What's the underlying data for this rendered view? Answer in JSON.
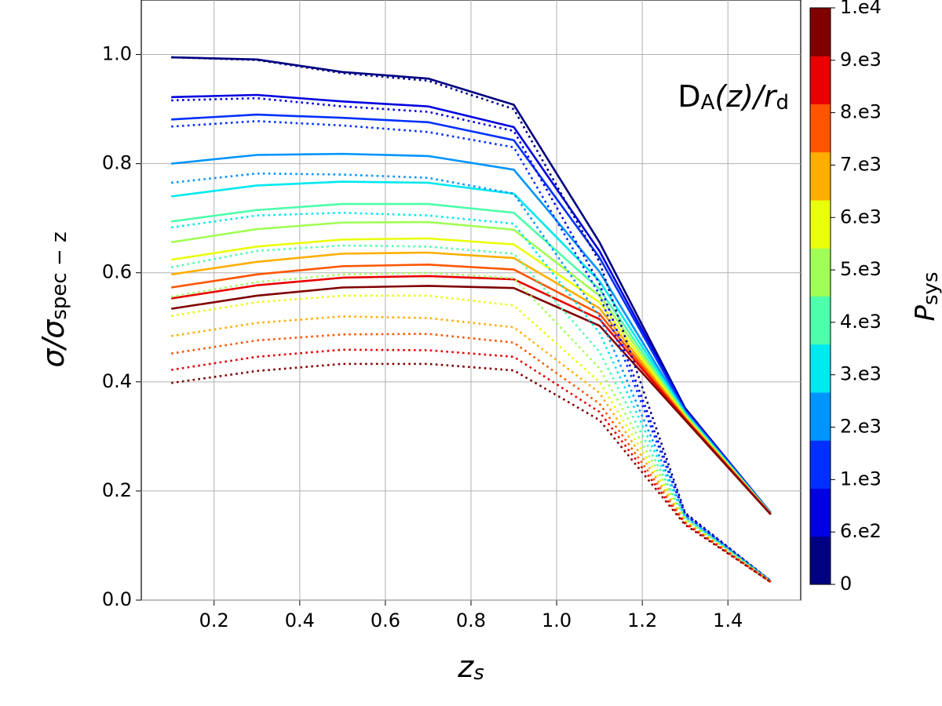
{
  "chart_data": {
    "type": "line",
    "annotation": [
      "D",
      "A",
      "(z)/r",
      "d"
    ],
    "xlabel": [
      "z",
      "s"
    ],
    "ylabel": [
      "σ/σ",
      "spec − z"
    ],
    "x": [
      0.1,
      0.3,
      0.5,
      0.7,
      0.9,
      1.1,
      1.3,
      1.5
    ],
    "xlim": [
      0.03,
      1.57
    ],
    "ylim": [
      0,
      1.1
    ],
    "xticks": [
      0.2,
      0.4,
      0.6,
      0.8,
      {
        "value": 1.0,
        "label": "1.0"
      },
      1.2,
      1.4
    ],
    "yticks": [
      {
        "value": 0,
        "label": "0.0"
      },
      0.2,
      0.4,
      0.6,
      0.8,
      {
        "value": 1.0,
        "label": "1.0"
      }
    ],
    "grid": true,
    "colorbar": {
      "label": [
        "P",
        "sys"
      ],
      "ticks": [
        "0",
        "6.e2",
        "1.e3",
        "2.e3",
        "3.e3",
        "4.e3",
        "5.e3",
        "6.e3",
        "7.e3",
        "8.e3",
        "9.e3",
        "1.e4"
      ]
    },
    "series": [
      {
        "color": "#000080",
        "linestyle": "solid",
        "values": [
          0.995,
          0.991,
          0.968,
          0.956,
          0.908,
          0.656,
          0.352,
          0.16
        ]
      },
      {
        "color": "#0000e0",
        "linestyle": "solid",
        "values": [
          0.922,
          0.926,
          0.914,
          0.905,
          0.867,
          0.64,
          0.35,
          0.16
        ]
      },
      {
        "color": "#0030ff",
        "linestyle": "solid",
        "values": [
          0.881,
          0.89,
          0.884,
          0.876,
          0.843,
          0.628,
          0.348,
          0.16
        ]
      },
      {
        "color": "#0094ff",
        "linestyle": "solid",
        "values": [
          0.8,
          0.816,
          0.818,
          0.814,
          0.789,
          0.602,
          0.345,
          0.159
        ]
      },
      {
        "color": "#00e8f0",
        "linestyle": "solid",
        "values": [
          0.74,
          0.76,
          0.767,
          0.765,
          0.745,
          0.585,
          0.343,
          0.159
        ]
      },
      {
        "color": "#4dffaa",
        "linestyle": "solid",
        "values": [
          0.694,
          0.715,
          0.726,
          0.726,
          0.71,
          0.57,
          0.341,
          0.159
        ]
      },
      {
        "color": "#a0ff56",
        "linestyle": "solid",
        "values": [
          0.656,
          0.68,
          0.692,
          0.693,
          0.679,
          0.558,
          0.339,
          0.158
        ]
      },
      {
        "color": "#eaff0d",
        "linestyle": "solid",
        "values": [
          0.624,
          0.648,
          0.661,
          0.663,
          0.652,
          0.546,
          0.337,
          0.158
        ]
      },
      {
        "color": "#ffae00",
        "linestyle": "solid",
        "values": [
          0.597,
          0.62,
          0.635,
          0.637,
          0.627,
          0.535,
          0.335,
          0.158
        ]
      },
      {
        "color": "#ff5500",
        "linestyle": "solid",
        "values": [
          0.573,
          0.597,
          0.612,
          0.615,
          0.606,
          0.525,
          0.333,
          0.158
        ]
      },
      {
        "color": "#e80000",
        "linestyle": "solid",
        "values": [
          0.553,
          0.577,
          0.591,
          0.594,
          0.588,
          0.515,
          0.332,
          0.157
        ]
      },
      {
        "color": "#800000",
        "linestyle": "solid",
        "values": [
          0.534,
          0.558,
          0.573,
          0.576,
          0.572,
          0.503,
          0.33,
          0.157
        ]
      },
      {
        "color": "#000080",
        "linestyle": "dotted",
        "values": [
          0.995,
          0.99,
          0.966,
          0.952,
          0.9,
          0.62,
          0.16,
          0.035
        ]
      },
      {
        "color": "#0000e0",
        "linestyle": "dotted",
        "values": [
          0.916,
          0.92,
          0.905,
          0.895,
          0.86,
          0.58,
          0.158,
          0.035
        ]
      },
      {
        "color": "#0030ff",
        "linestyle": "dotted",
        "values": [
          0.868,
          0.878,
          0.87,
          0.858,
          0.83,
          0.56,
          0.156,
          0.035
        ]
      },
      {
        "color": "#0094ff",
        "linestyle": "dotted",
        "values": [
          0.765,
          0.782,
          0.78,
          0.774,
          0.745,
          0.52,
          0.154,
          0.035
        ]
      },
      {
        "color": "#00e8f0",
        "linestyle": "dotted",
        "values": [
          0.683,
          0.705,
          0.71,
          0.705,
          0.69,
          0.49,
          0.152,
          0.034
        ]
      },
      {
        "color": "#4dffaa",
        "linestyle": "dotted",
        "values": [
          0.61,
          0.64,
          0.65,
          0.648,
          0.635,
          0.455,
          0.15,
          0.034
        ]
      },
      {
        "color": "#a0ff56",
        "linestyle": "dotted",
        "values": [
          0.556,
          0.583,
          0.597,
          0.6,
          0.59,
          0.425,
          0.148,
          0.034
        ]
      },
      {
        "color": "#eaff0d",
        "linestyle": "dotted",
        "values": [
          0.521,
          0.546,
          0.558,
          0.558,
          0.54,
          0.4,
          0.146,
          0.034
        ]
      },
      {
        "color": "#ffae00",
        "linestyle": "dotted",
        "values": [
          0.484,
          0.508,
          0.52,
          0.517,
          0.5,
          0.38,
          0.144,
          0.034
        ]
      },
      {
        "color": "#ff5500",
        "linestyle": "dotted",
        "values": [
          0.452,
          0.476,
          0.487,
          0.488,
          0.472,
          0.36,
          0.142,
          0.033
        ]
      },
      {
        "color": "#e80000",
        "linestyle": "dotted",
        "values": [
          0.422,
          0.446,
          0.459,
          0.458,
          0.446,
          0.345,
          0.14,
          0.033
        ]
      },
      {
        "color": "#800000",
        "linestyle": "dotted",
        "values": [
          0.398,
          0.42,
          0.433,
          0.433,
          0.421,
          0.33,
          0.138,
          0.033
        ]
      }
    ]
  }
}
